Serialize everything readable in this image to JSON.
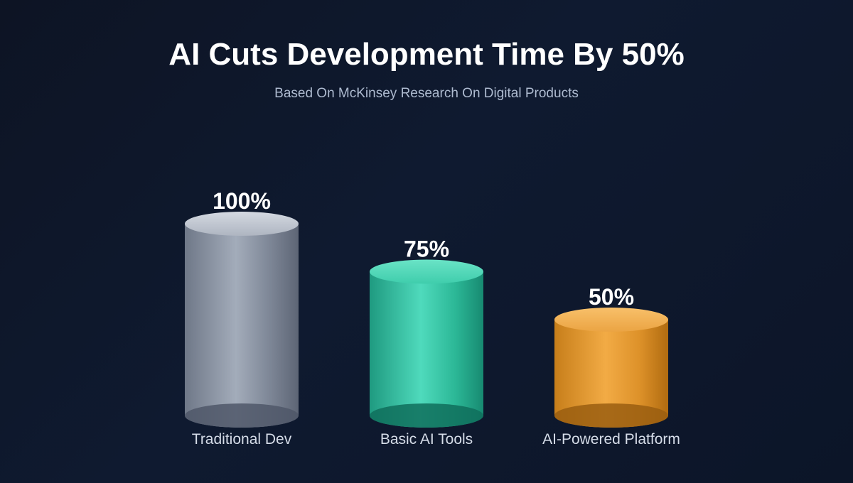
{
  "title": "AI Cuts Development Time By 50%",
  "subtitle": "Based On McKinsey Research On Digital Products",
  "chart_data": {
    "type": "bar",
    "title": "AI Cuts Development Time By 50%",
    "subtitle": "Based On McKinsey Research On Digital Products",
    "categories": [
      "Traditional Dev",
      "Basic AI Tools",
      "AI-Powered Platform"
    ],
    "values": [
      100,
      75,
      50
    ],
    "value_labels": [
      "100%",
      "75%",
      "50%"
    ],
    "unit": "%",
    "grid": false,
    "legend": "none",
    "colors": [
      "#8e97a7",
      "#34c4a4",
      "#e89c30"
    ]
  }
}
